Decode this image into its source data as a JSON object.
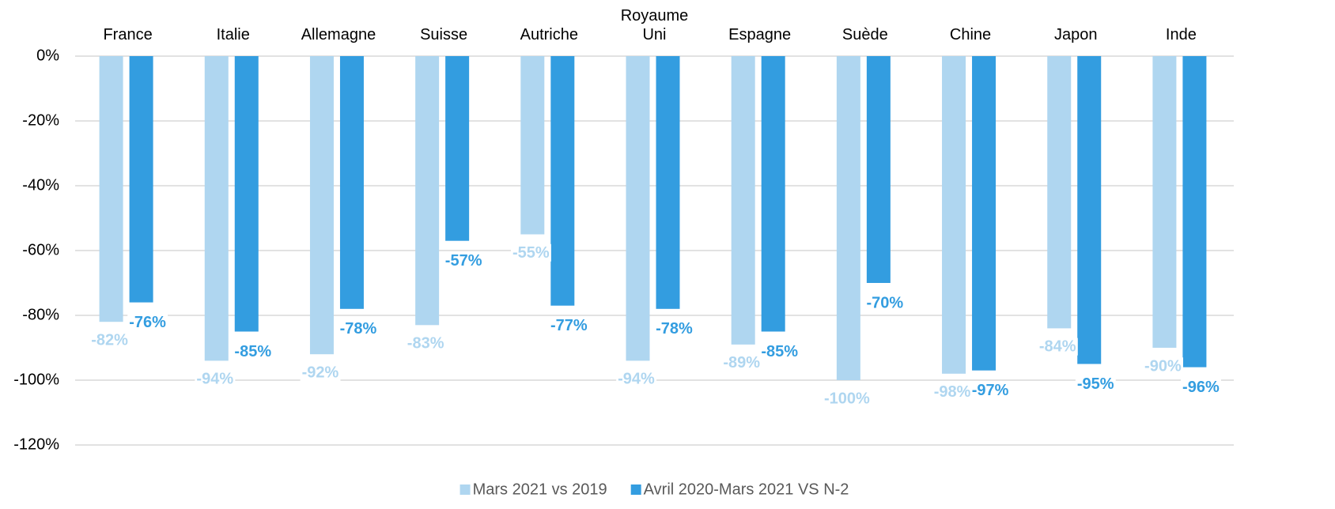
{
  "chart_data": {
    "type": "bar",
    "categories": [
      "France",
      "Italie",
      "Allemagne",
      "Suisse",
      "Autriche",
      "Royaume Uni",
      "Espagne",
      "Suède",
      "Chine",
      "Japon",
      "Inde"
    ],
    "series": [
      {
        "name": "Mars 2021 vs 2019",
        "color": "#afd6f0",
        "values": [
          -82,
          -94,
          -92,
          -83,
          -55,
          -94,
          -89,
          -100,
          -98,
          -84,
          -90
        ],
        "value_labels": [
          "-82%",
          "-94%",
          "-92%",
          "-83%",
          "-55%",
          "-94%",
          "-89%",
          "-100%",
          "-98%",
          "-84%",
          "-90%"
        ]
      },
      {
        "name": "Avril 2020-Mars 2021 VS N-2",
        "color": "#339de0",
        "values": [
          -76,
          -85,
          -78,
          -57,
          -77,
          -78,
          -85,
          -70,
          -97,
          -95,
          -96
        ],
        "value_labels": [
          "-76%",
          "-85%",
          "-78%",
          "-57%",
          "-77%",
          "-78%",
          "-85%",
          "-70%",
          "-97%",
          "-95%",
          "-96%"
        ]
      }
    ],
    "ylim": [
      -120,
      0
    ],
    "yticks": [
      {
        "value": 0,
        "label": "0%"
      },
      {
        "value": -20,
        "label": "-20%"
      },
      {
        "value": -40,
        "label": "-40%"
      },
      {
        "value": -60,
        "label": "-60%"
      },
      {
        "value": -80,
        "label": "-80%"
      },
      {
        "value": -100,
        "label": "-100%"
      },
      {
        "value": -120,
        "label": "-120%"
      }
    ],
    "grid": true,
    "legend": "bottom"
  }
}
